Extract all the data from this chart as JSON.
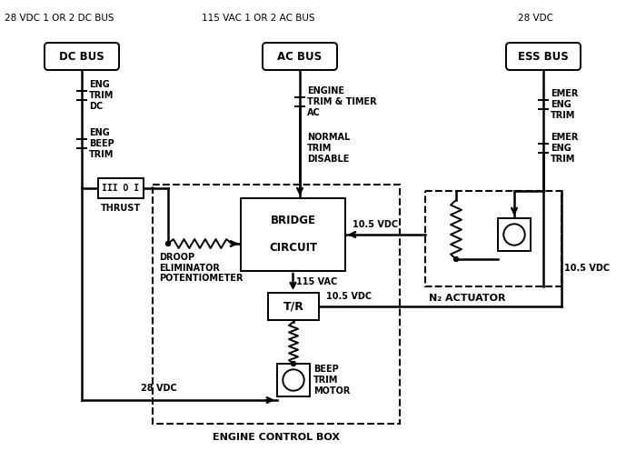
{
  "bg_color": "#ffffff",
  "fig_width": 7.0,
  "fig_height": 4.96,
  "dpi": 100,
  "dc_bus_label": "28 VDC 1 OR 2 DC BUS",
  "dc_bus_text": "DC BUS",
  "ac_bus_label": "115 VAC 1 OR 2 AC BUS",
  "ac_bus_text": "AC BUS",
  "ess_bus_label": "28 VDC",
  "ess_bus_text": "ESS BUS",
  "eng_trim_dc": "ENG\nTRIM\nDC",
  "eng_beep_trim": "ENG\nBEEP\nTRIM",
  "thrust": "THRUST",
  "droop": "DROOP\nELIMINATOR\nPOTENTIOMETER",
  "bridge": "BRIDGE\n\nCIRCUIT",
  "engine_trim_timer": "ENGINE\nTRIM & TIMER\nAC",
  "normal_trim": "NORMAL\nTRIM\nDISABLE",
  "emer_eng_trim1": "EMER\nENG\nTRIM",
  "emer_eng_trim2": "EMER\nENG\nTRIM",
  "n2_actuator": "N₂ ACTUATOR",
  "tr": "T/R",
  "beep_trim_motor": "BEEP\nTRIM\nMOTOR",
  "engine_control_box": "ENGINE CONTROL BOX",
  "vac_115": "115 VAC",
  "vdc_10_5_mid": "10.5 VDC",
  "vdc_10_5_right": "10.5 VDC",
  "vdc_28": "28 VDC"
}
